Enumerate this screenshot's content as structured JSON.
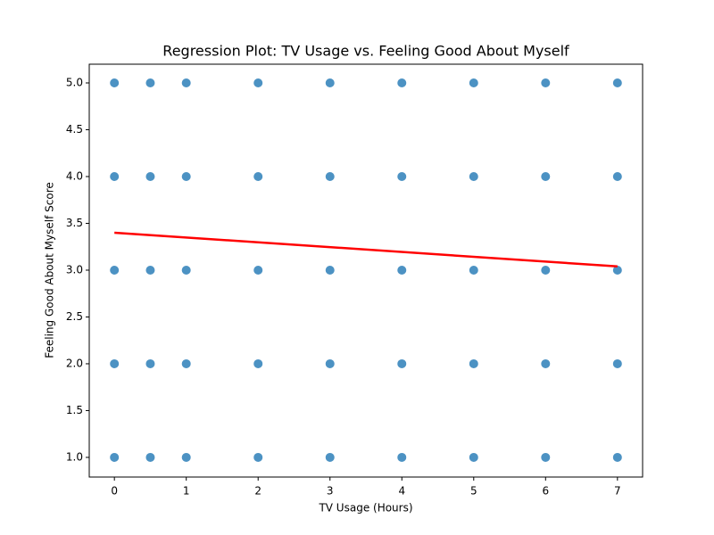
{
  "chart_data": {
    "type": "scatter",
    "title": "Regression Plot: TV Usage vs. Feeling Good About Myself",
    "xlabel": "TV Usage (Hours)",
    "ylabel": "Feeling Good About Myself Score",
    "xlim": [
      -0.35,
      7.35
    ],
    "ylim": [
      0.79,
      5.2
    ],
    "xticks": [
      0,
      1,
      2,
      3,
      4,
      5,
      6,
      7
    ],
    "yticks": [
      {
        "value": 1,
        "label": "1.0"
      },
      {
        "value": 1.5,
        "label": "1.5"
      },
      {
        "value": 2,
        "label": "2.0"
      },
      {
        "value": 2.5,
        "label": "2.5"
      },
      {
        "value": 3,
        "label": "3.0"
      },
      {
        "value": 3.5,
        "label": "3.5"
      },
      {
        "value": 4,
        "label": "4.0"
      },
      {
        "value": 4.5,
        "label": "4.5"
      },
      {
        "value": 5,
        "label": "5.0"
      }
    ],
    "series": [
      {
        "type": "scatter",
        "color": "#1f77b4",
        "x": [
          0,
          0,
          0,
          0,
          0,
          0.5,
          0.5,
          0.5,
          0.5,
          0.5,
          1,
          1,
          1,
          1,
          1,
          2,
          2,
          2,
          2,
          2,
          3,
          3,
          3,
          3,
          3,
          4,
          4,
          4,
          4,
          4,
          5,
          5,
          5,
          5,
          5,
          6,
          6,
          6,
          6,
          6,
          7,
          7,
          7,
          7,
          7
        ],
        "values": [
          1,
          2,
          3,
          4,
          5,
          1,
          2,
          3,
          4,
          5,
          1,
          2,
          3,
          4,
          5,
          1,
          2,
          3,
          4,
          5,
          1,
          2,
          3,
          4,
          5,
          1,
          2,
          3,
          4,
          5,
          1,
          2,
          3,
          4,
          5,
          1,
          2,
          3,
          4,
          5,
          1,
          2,
          3,
          4,
          5
        ]
      },
      {
        "type": "line",
        "color": "#ff0000",
        "x": [
          0,
          7
        ],
        "values": [
          3.4,
          3.04
        ]
      }
    ]
  }
}
